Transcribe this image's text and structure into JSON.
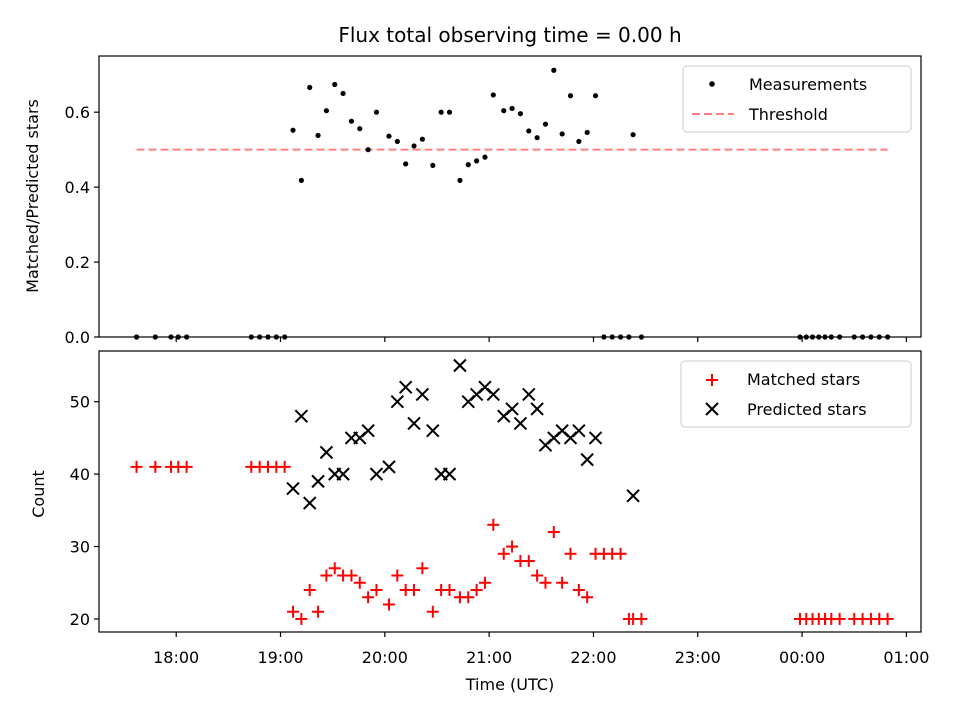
{
  "chart_data": [
    {
      "type": "scatter",
      "title": "Flux total observing time = 0.00 h",
      "ylabel": "Matched/Predicted stars",
      "ylim": [
        0,
        0.75
      ],
      "yticks": [
        0.0,
        0.2,
        0.4,
        0.6
      ],
      "ytick_labels": [
        "0.0",
        "0.2",
        "0.4",
        "0.6"
      ],
      "legend": "top-right",
      "legend_items": [
        {
          "name": "Measurements",
          "marker": "dot",
          "color": "#000000"
        },
        {
          "name": "Threshold",
          "marker": "dashed-line",
          "color": "#ff7f7f"
        }
      ],
      "threshold": {
        "value": 0.5,
        "x_start": 17.62,
        "x_end": 24.82,
        "color": "#ff7f7f"
      },
      "series": [
        {
          "name": "Measurements",
          "color": "#000000",
          "x": [
            17.62,
            17.8,
            17.95,
            18.02,
            18.1,
            18.72,
            18.8,
            18.88,
            18.96,
            19.04,
            19.12,
            19.2,
            19.28,
            19.36,
            19.44,
            19.52,
            19.6,
            19.68,
            19.76,
            19.84,
            19.92,
            20.04,
            20.12,
            20.2,
            20.28,
            20.36,
            20.46,
            20.54,
            20.62,
            20.72,
            20.8,
            20.88,
            20.96,
            21.04,
            21.14,
            21.22,
            21.3,
            21.38,
            21.46,
            21.54,
            21.62,
            21.7,
            21.78,
            21.86,
            21.94,
            22.02,
            22.1,
            22.18,
            22.26,
            22.34,
            22.38,
            22.46,
            23.98,
            24.04,
            24.1,
            24.16,
            24.22,
            24.28,
            24.36,
            24.5,
            24.58,
            24.66,
            24.74,
            24.82
          ],
          "y": [
            0,
            0,
            0,
            0,
            0,
            0,
            0,
            0,
            0,
            0,
            0.552,
            0.418,
            0.666,
            0.538,
            0.604,
            0.674,
            0.65,
            0.576,
            0.556,
            0.5,
            0.6,
            0.536,
            0.522,
            0.462,
            0.51,
            0.528,
            0.458,
            0.6,
            0.6,
            0.418,
            0.46,
            0.47,
            0.48,
            0.646,
            0.604,
            0.61,
            0.596,
            0.55,
            0.532,
            0.568,
            0.712,
            0.542,
            0.644,
            0.522,
            0.546,
            0.644,
            0,
            0,
            0,
            0,
            0.54,
            0,
            0,
            0,
            0,
            0,
            0,
            0,
            0,
            0,
            0,
            0,
            0,
            0
          ]
        }
      ]
    },
    {
      "type": "scatter",
      "xlabel": "Time (UTC)",
      "ylabel": "Count",
      "ylim": [
        18.2,
        57
      ],
      "xlim": [
        17.26,
        25.14
      ],
      "xticks": [
        18,
        19,
        20,
        21,
        22,
        23,
        24,
        25
      ],
      "xtick_labels": [
        "18:00",
        "19:00",
        "20:00",
        "21:00",
        "22:00",
        "23:00",
        "00:00",
        "01:00"
      ],
      "yticks": [
        20,
        30,
        40,
        50
      ],
      "ytick_labels": [
        "20",
        "30",
        "40",
        "50"
      ],
      "legend": "top-right",
      "series": [
        {
          "name": "Matched stars",
          "marker": "plus",
          "color": "#ff0000",
          "x": [
            17.62,
            17.8,
            17.95,
            18.02,
            18.1,
            18.72,
            18.8,
            18.88,
            18.96,
            19.04,
            19.12,
            19.2,
            19.28,
            19.36,
            19.44,
            19.52,
            19.6,
            19.68,
            19.76,
            19.84,
            19.92,
            20.04,
            20.12,
            20.2,
            20.28,
            20.36,
            20.46,
            20.54,
            20.62,
            20.72,
            20.8,
            20.88,
            20.96,
            21.04,
            21.14,
            21.22,
            21.3,
            21.38,
            21.46,
            21.54,
            21.62,
            21.7,
            21.78,
            21.86,
            21.94,
            22.02,
            22.1,
            22.18,
            22.26,
            22.34,
            22.38,
            22.46,
            23.98,
            24.04,
            24.1,
            24.16,
            24.22,
            24.28,
            24.36,
            24.5,
            24.58,
            24.66,
            24.74,
            24.82
          ],
          "y": [
            41,
            41,
            41,
            41,
            41,
            41,
            41,
            41,
            41,
            41,
            21,
            20,
            24,
            21,
            26,
            27,
            26,
            26,
            25,
            23,
            24,
            22,
            26,
            24,
            24,
            27,
            21,
            24,
            24,
            23,
            23,
            24,
            25,
            33,
            29,
            30,
            28,
            28,
            26,
            25,
            32,
            25,
            29,
            24,
            23,
            29,
            29,
            29,
            29,
            20,
            20,
            20,
            20,
            20,
            20,
            20,
            20,
            20,
            20,
            20,
            20,
            20,
            20,
            20
          ]
        },
        {
          "name": "Predicted stars",
          "marker": "x",
          "color": "#000000",
          "x": [
            19.12,
            19.2,
            19.28,
            19.36,
            19.44,
            19.52,
            19.6,
            19.68,
            19.76,
            19.84,
            19.92,
            20.04,
            20.12,
            20.2,
            20.28,
            20.36,
            20.46,
            20.54,
            20.62,
            20.72,
            20.8,
            20.88,
            20.96,
            21.04,
            21.14,
            21.22,
            21.3,
            21.38,
            21.46,
            21.54,
            21.62,
            21.7,
            21.78,
            21.86,
            21.94,
            22.02,
            22.38
          ],
          "y": [
            38,
            48,
            36,
            39,
            43,
            40,
            40,
            45,
            45,
            46,
            40,
            41,
            50,
            52,
            47,
            51,
            46,
            40,
            40,
            55,
            50,
            51,
            52,
            51,
            48,
            49,
            47,
            51,
            49,
            44,
            45,
            46,
            45,
            46,
            42,
            45,
            37
          ]
        }
      ]
    }
  ]
}
